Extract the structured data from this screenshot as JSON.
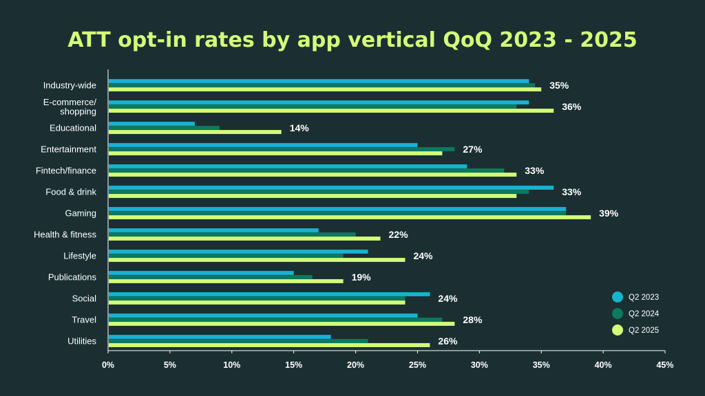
{
  "chart_data": {
    "type": "bar",
    "orientation": "horizontal",
    "title": "ATT opt-in rates by app vertical QoQ 2023 - 2025",
    "xlabel": "",
    "ylabel": "",
    "xlim": [
      0,
      45
    ],
    "x_ticks": [
      "0%",
      "5%",
      "10%",
      "15%",
      "20%",
      "25%",
      "30%",
      "35%",
      "40%",
      "45%"
    ],
    "x_tick_values": [
      0,
      5,
      10,
      15,
      20,
      25,
      30,
      35,
      40,
      45
    ],
    "grid": false,
    "legend_position": "right",
    "categories": [
      [
        "Industry-wide"
      ],
      [
        "E-commerce/",
        "shopping"
      ],
      [
        "Educational"
      ],
      [
        "Entertainment"
      ],
      [
        "Fintech/finance"
      ],
      [
        "Food & drink"
      ],
      [
        "Gaming"
      ],
      [
        "Health & fitness"
      ],
      [
        "Lifestyle"
      ],
      [
        "Publications"
      ],
      [
        "Social"
      ],
      [
        "Travel"
      ],
      [
        "Utilities"
      ]
    ],
    "series": [
      {
        "name": "Q2 2023",
        "color": "#17b3cf",
        "values": [
          34,
          34,
          7,
          25,
          29,
          36,
          37,
          17,
          21,
          15,
          26,
          25,
          18
        ]
      },
      {
        "name": "Q2 2024",
        "color": "#0b7a5f",
        "values": [
          34.5,
          33,
          9,
          28,
          32,
          34,
          37,
          20,
          19,
          16.5,
          24,
          27,
          21
        ]
      },
      {
        "name": "Q2 2025",
        "color": "#d4fb79",
        "values": [
          35,
          36,
          14,
          27,
          33,
          33,
          39,
          22,
          24,
          19,
          24,
          28,
          26
        ]
      }
    ],
    "data_labels": [
      "35%",
      "36%",
      "14%",
      "27%",
      "33%",
      "33%",
      "39%",
      "22%",
      "24%",
      "19%",
      "24%",
      "28%",
      "26%"
    ],
    "colors": {
      "background": "#1b2f33",
      "title": "#d4fb79",
      "axis": "#ffffff",
      "text": "#ffffff"
    }
  }
}
